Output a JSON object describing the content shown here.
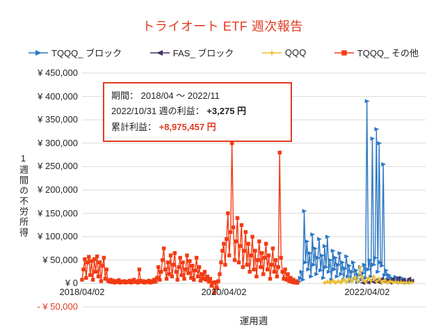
{
  "colors": {
    "red": "#e23a20",
    "grid": "#d9d9d9",
    "text": "#222222"
  },
  "annotation": {
    "period_label": "期間： ",
    "period_value": "2018/04 ～ 2022/11",
    "week_label": "2022/10/31 週の利益： ",
    "week_value": "+3,275 円",
    "total_label": "累計利益： ",
    "total_value": "+8,975,457 円"
  },
  "chart_data": {
    "type": "line",
    "title": "トライオート ETF 週次報告",
    "xlabel": "運用週",
    "ylabel": "1週間の不労所得",
    "x_unit": "weeks since 2018/04/02",
    "xlim": [
      0,
      252
    ],
    "ylim": [
      -50000,
      450000
    ],
    "y_tick_step": 50000,
    "grid": true,
    "legend_position": "top",
    "x_ticks": [
      {
        "week": 0,
        "label": "2018/04/02"
      },
      {
        "week": 104,
        "label": "2020/04/02"
      },
      {
        "week": 209,
        "label": "2022/04/02"
      }
    ],
    "y_ticks": [
      {
        "value": 450000,
        "label": "¥ 450,000"
      },
      {
        "value": 400000,
        "label": "¥ 400,000"
      },
      {
        "value": 350000,
        "label": "¥ 350,000"
      },
      {
        "value": 300000,
        "label": "¥ 300,000"
      },
      {
        "value": 250000,
        "label": "¥ 250,000"
      },
      {
        "value": 200000,
        "label": "¥ 200,000"
      },
      {
        "value": 150000,
        "label": "¥ 150,000"
      },
      {
        "value": 100000,
        "label": "¥ 100,000"
      },
      {
        "value": 50000,
        "label": "¥ 50,000"
      },
      {
        "value": 0,
        "label": "¥ 0"
      },
      {
        "value": -50000,
        "label": "- ¥ 50,000",
        "negative": true
      }
    ],
    "series": [
      {
        "id": "tqqq-block",
        "name": "TQQQ_ ブロック",
        "color": "#2e78c4",
        "marker": "triangle-right",
        "points": [
          [
            159,
            4000
          ],
          [
            160,
            12000
          ],
          [
            161,
            25000
          ],
          [
            162,
            8000
          ],
          [
            163,
            155000
          ],
          [
            164,
            45000
          ],
          [
            165,
            90000
          ],
          [
            166,
            30000
          ],
          [
            167,
            65000
          ],
          [
            168,
            15000
          ],
          [
            169,
            105000
          ],
          [
            170,
            40000
          ],
          [
            171,
            75000
          ],
          [
            172,
            20000
          ],
          [
            173,
            55000
          ],
          [
            174,
            95000
          ],
          [
            175,
            28000
          ],
          [
            176,
            60000
          ],
          [
            177,
            12000
          ],
          [
            178,
            80000
          ],
          [
            179,
            35000
          ],
          [
            180,
            100000
          ],
          [
            181,
            25000
          ],
          [
            182,
            50000
          ],
          [
            183,
            8000
          ],
          [
            184,
            70000
          ],
          [
            185,
            30000
          ],
          [
            186,
            55000
          ],
          [
            187,
            15000
          ],
          [
            188,
            40000
          ],
          [
            189,
            65000
          ],
          [
            190,
            20000
          ],
          [
            191,
            45000
          ],
          [
            192,
            8000
          ],
          [
            193,
            32000
          ],
          [
            194,
            58000
          ],
          [
            195,
            15000
          ],
          [
            196,
            38000
          ],
          [
            197,
            5000
          ],
          [
            198,
            25000
          ],
          [
            199,
            45000
          ],
          [
            200,
            10000
          ],
          [
            201,
            28000
          ],
          [
            202,
            3000
          ],
          [
            203,
            18000
          ],
          [
            204,
            35000
          ],
          [
            205,
            8000
          ],
          [
            206,
            22000
          ],
          [
            207,
            40000
          ],
          [
            208,
            12000
          ],
          [
            209,
            390000
          ],
          [
            210,
            30000
          ],
          [
            211,
            50000
          ],
          [
            212,
            15000
          ],
          [
            213,
            310000
          ],
          [
            214,
            40000
          ],
          [
            215,
            55000
          ],
          [
            216,
            330000
          ],
          [
            217,
            25000
          ],
          [
            218,
            300000
          ],
          [
            219,
            45000
          ],
          [
            220,
            38000
          ],
          [
            221,
            255000
          ],
          [
            222,
            18000
          ],
          [
            223,
            28000
          ],
          [
            224,
            8000
          ],
          [
            225,
            18000
          ],
          [
            226,
            4000
          ],
          [
            227,
            12000
          ],
          [
            228,
            2500
          ],
          [
            229,
            8000
          ],
          [
            230,
            14000
          ],
          [
            231,
            4000
          ],
          [
            232,
            9000
          ],
          [
            233,
            2000
          ],
          [
            234,
            6000
          ],
          [
            235,
            11000
          ],
          [
            236,
            3000
          ],
          [
            237,
            7000
          ],
          [
            238,
            2000
          ],
          [
            239,
            3275
          ],
          [
            240,
            5000
          ],
          [
            241,
            2500
          ],
          [
            242,
            4000
          ]
        ]
      },
      {
        "id": "fas-block",
        "name": "FAS_ ブロック",
        "color": "#44315f",
        "marker": "triangle-left",
        "points": [
          [
            206,
            1500
          ],
          [
            208,
            4000
          ],
          [
            210,
            2000
          ],
          [
            212,
            6000
          ],
          [
            214,
            3000
          ],
          [
            216,
            8000
          ],
          [
            218,
            2500
          ],
          [
            220,
            10000
          ],
          [
            222,
            4000
          ],
          [
            224,
            7000
          ],
          [
            226,
            2000
          ],
          [
            228,
            9000
          ],
          [
            230,
            3500
          ],
          [
            232,
            12000
          ],
          [
            234,
            5000
          ],
          [
            236,
            8000
          ],
          [
            238,
            3000
          ],
          [
            240,
            10000
          ],
          [
            242,
            6000
          ]
        ]
      },
      {
        "id": "qqq",
        "name": "QQQ",
        "color": "#eebe2c",
        "marker": "star4",
        "points": [
          [
            178,
            1500
          ],
          [
            180,
            4000
          ],
          [
            182,
            2000
          ],
          [
            184,
            6000
          ],
          [
            186,
            1500
          ],
          [
            188,
            5000
          ],
          [
            190,
            2500
          ],
          [
            192,
            8000
          ],
          [
            194,
            3000
          ],
          [
            196,
            10000
          ],
          [
            198,
            4000
          ],
          [
            200,
            12000
          ],
          [
            202,
            5000
          ],
          [
            204,
            35000
          ],
          [
            205,
            15000
          ],
          [
            206,
            8000
          ],
          [
            208,
            3000
          ],
          [
            210,
            12000
          ],
          [
            212,
            6000
          ],
          [
            214,
            15000
          ],
          [
            216,
            4000
          ],
          [
            218,
            10000
          ],
          [
            220,
            2500
          ],
          [
            222,
            7000
          ],
          [
            224,
            1500
          ],
          [
            226,
            5000
          ],
          [
            228,
            2000
          ],
          [
            230,
            4000
          ],
          [
            232,
            1500
          ],
          [
            234,
            3000
          ],
          [
            236,
            1000
          ],
          [
            238,
            2500
          ],
          [
            240,
            1500
          ],
          [
            242,
            2000
          ]
        ]
      },
      {
        "id": "tqqq-other",
        "name": "TQQQ_ その他",
        "color": "#f23b14",
        "marker": "square",
        "points": [
          [
            0,
            8000
          ],
          [
            1,
            30000
          ],
          [
            2,
            52000
          ],
          [
            3,
            12000
          ],
          [
            4,
            45000
          ],
          [
            5,
            57000
          ],
          [
            6,
            18000
          ],
          [
            7,
            48000
          ],
          [
            8,
            8000
          ],
          [
            9,
            52000
          ],
          [
            10,
            25000
          ],
          [
            11,
            58000
          ],
          [
            12,
            15000
          ],
          [
            13,
            45000
          ],
          [
            14,
            5000
          ],
          [
            15,
            38000
          ],
          [
            16,
            55000
          ],
          [
            17,
            10000
          ],
          [
            18,
            30000
          ],
          [
            19,
            6000
          ],
          [
            20,
            4000
          ],
          [
            21,
            8000
          ],
          [
            22,
            3000
          ],
          [
            23,
            6000
          ],
          [
            24,
            2000
          ],
          [
            25,
            5000
          ],
          [
            26,
            3000
          ],
          [
            27,
            7000
          ],
          [
            28,
            2000
          ],
          [
            29,
            4000
          ],
          [
            30,
            3000
          ],
          [
            31,
            5000
          ],
          [
            32,
            2000
          ],
          [
            33,
            4000
          ],
          [
            34,
            3000
          ],
          [
            35,
            6000
          ],
          [
            36,
            2000
          ],
          [
            37,
            4000
          ],
          [
            38,
            8000
          ],
          [
            39,
            3000
          ],
          [
            40,
            5000
          ],
          [
            41,
            2000
          ],
          [
            42,
            30000
          ],
          [
            43,
            6000
          ],
          [
            44,
            3000
          ],
          [
            45,
            5000
          ],
          [
            46,
            2000
          ],
          [
            47,
            4000
          ],
          [
            48,
            3000
          ],
          [
            49,
            6000
          ],
          [
            50,
            2000
          ],
          [
            51,
            5000
          ],
          [
            52,
            3000
          ],
          [
            53,
            8000
          ],
          [
            54,
            4000
          ],
          [
            55,
            12000
          ],
          [
            56,
            35000
          ],
          [
            57,
            8000
          ],
          [
            58,
            25000
          ],
          [
            59,
            50000
          ],
          [
            60,
            75000
          ],
          [
            61,
            30000
          ],
          [
            62,
            10000
          ],
          [
            63,
            45000
          ],
          [
            64,
            20000
          ],
          [
            65,
            60000
          ],
          [
            66,
            15000
          ],
          [
            67,
            40000
          ],
          [
            68,
            65000
          ],
          [
            69,
            25000
          ],
          [
            70,
            8000
          ],
          [
            71,
            35000
          ],
          [
            72,
            55000
          ],
          [
            73,
            18000
          ],
          [
            74,
            45000
          ],
          [
            75,
            10000
          ],
          [
            76,
            30000
          ],
          [
            77,
            60000
          ],
          [
            78,
            22000
          ],
          [
            79,
            48000
          ],
          [
            80,
            12000
          ],
          [
            81,
            38000
          ],
          [
            82,
            8000
          ],
          [
            83,
            28000
          ],
          [
            84,
            55000
          ],
          [
            85,
            15000
          ],
          [
            86,
            35000
          ],
          [
            87,
            6000
          ],
          [
            88,
            20000
          ],
          [
            89,
            10000
          ],
          [
            90,
            25000
          ],
          [
            91,
            8000
          ],
          [
            92,
            15000
          ],
          [
            93,
            4000
          ],
          [
            94,
            10000
          ],
          [
            95,
            -5000
          ],
          [
            96,
            2000
          ],
          [
            97,
            -20000
          ],
          [
            98,
            3000
          ],
          [
            99,
            -10000
          ],
          [
            100,
            5000
          ],
          [
            101,
            20000
          ],
          [
            102,
            45000
          ],
          [
            103,
            70000
          ],
          [
            104,
            85000
          ],
          [
            105,
            40000
          ],
          [
            106,
            95000
          ],
          [
            107,
            150000
          ],
          [
            108,
            60000
          ],
          [
            109,
            110000
          ],
          [
            110,
            300000
          ],
          [
            111,
            120000
          ],
          [
            112,
            50000
          ],
          [
            113,
            90000
          ],
          [
            114,
            140000
          ],
          [
            115,
            45000
          ],
          [
            116,
            80000
          ],
          [
            117,
            125000
          ],
          [
            118,
            35000
          ],
          [
            119,
            70000
          ],
          [
            120,
            110000
          ],
          [
            121,
            40000
          ],
          [
            122,
            85000
          ],
          [
            123,
            25000
          ],
          [
            124,
            60000
          ],
          [
            125,
            100000
          ],
          [
            126,
            30000
          ],
          [
            127,
            70000
          ],
          [
            128,
            15000
          ],
          [
            129,
            50000
          ],
          [
            130,
            90000
          ],
          [
            131,
            35000
          ],
          [
            132,
            65000
          ],
          [
            133,
            20000
          ],
          [
            134,
            55000
          ],
          [
            135,
            85000
          ],
          [
            136,
            30000
          ],
          [
            137,
            60000
          ],
          [
            138,
            10000
          ],
          [
            139,
            40000
          ],
          [
            140,
            75000
          ],
          [
            141,
            25000
          ],
          [
            142,
            50000
          ],
          [
            143,
            15000
          ],
          [
            144,
            35000
          ],
          [
            145,
            280000
          ],
          [
            146,
            55000
          ],
          [
            147,
            25000
          ],
          [
            148,
            10000
          ],
          [
            149,
            30000
          ],
          [
            150,
            8000
          ],
          [
            151,
            20000
          ],
          [
            152,
            5000
          ],
          [
            153,
            12000
          ],
          [
            154,
            3000
          ],
          [
            155,
            8000
          ],
          [
            156,
            2000
          ],
          [
            157,
            5000
          ],
          [
            158,
            1500
          ]
        ]
      }
    ]
  }
}
